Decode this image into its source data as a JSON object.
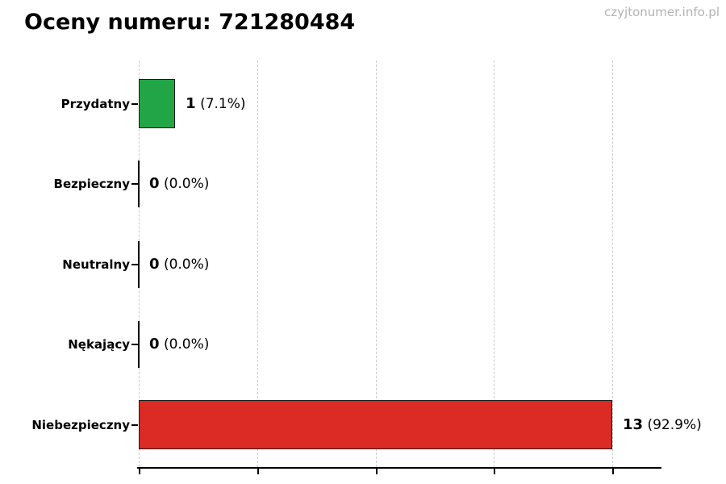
{
  "header": {
    "title": "Oceny numeru: 721280484",
    "watermark": "czyjtonumer.info.pl"
  },
  "chart_data": {
    "type": "bar",
    "orientation": "horizontal",
    "title": "Oceny numeru: 721280484",
    "watermark": "czyjtonumer.info.pl",
    "categories": [
      "Przydatny",
      "Bezpieczny",
      "Neutralny",
      "Nękający",
      "Niebezpieczny"
    ],
    "values": [
      1,
      0,
      0,
      0,
      13
    ],
    "value_labels": [
      "1",
      "0",
      "0",
      "0",
      "13"
    ],
    "pct_labels": [
      "(7.1%)",
      "(0.0%)",
      "(0.0%)",
      "(0.0%)",
      "(92.9%)"
    ],
    "full_labels": [
      "1 (7.1%)",
      "0 (0.0%)",
      "0 (0.0%)",
      "0 (0.0%)",
      "13 (92.9%)"
    ],
    "bar_colors": [
      "#22a546",
      "#000000",
      "#000000",
      "#000000",
      "#dc2a25"
    ],
    "xlim": [
      0,
      14.35
    ],
    "x_ticks": [
      0,
      3.25,
      6.5,
      9.75,
      13
    ],
    "x_tick_labels": [
      "",
      "",
      "",
      "",
      ""
    ],
    "grid": "vertical-dashed",
    "legend": "none",
    "colors": {
      "positive_green": "#22a546",
      "negative_red": "#dc2a25",
      "bar_edge": "#1a1a1a",
      "gridline": "#cccccc",
      "watermark_gray": "#b3b3b3",
      "axis": "#000000"
    }
  }
}
